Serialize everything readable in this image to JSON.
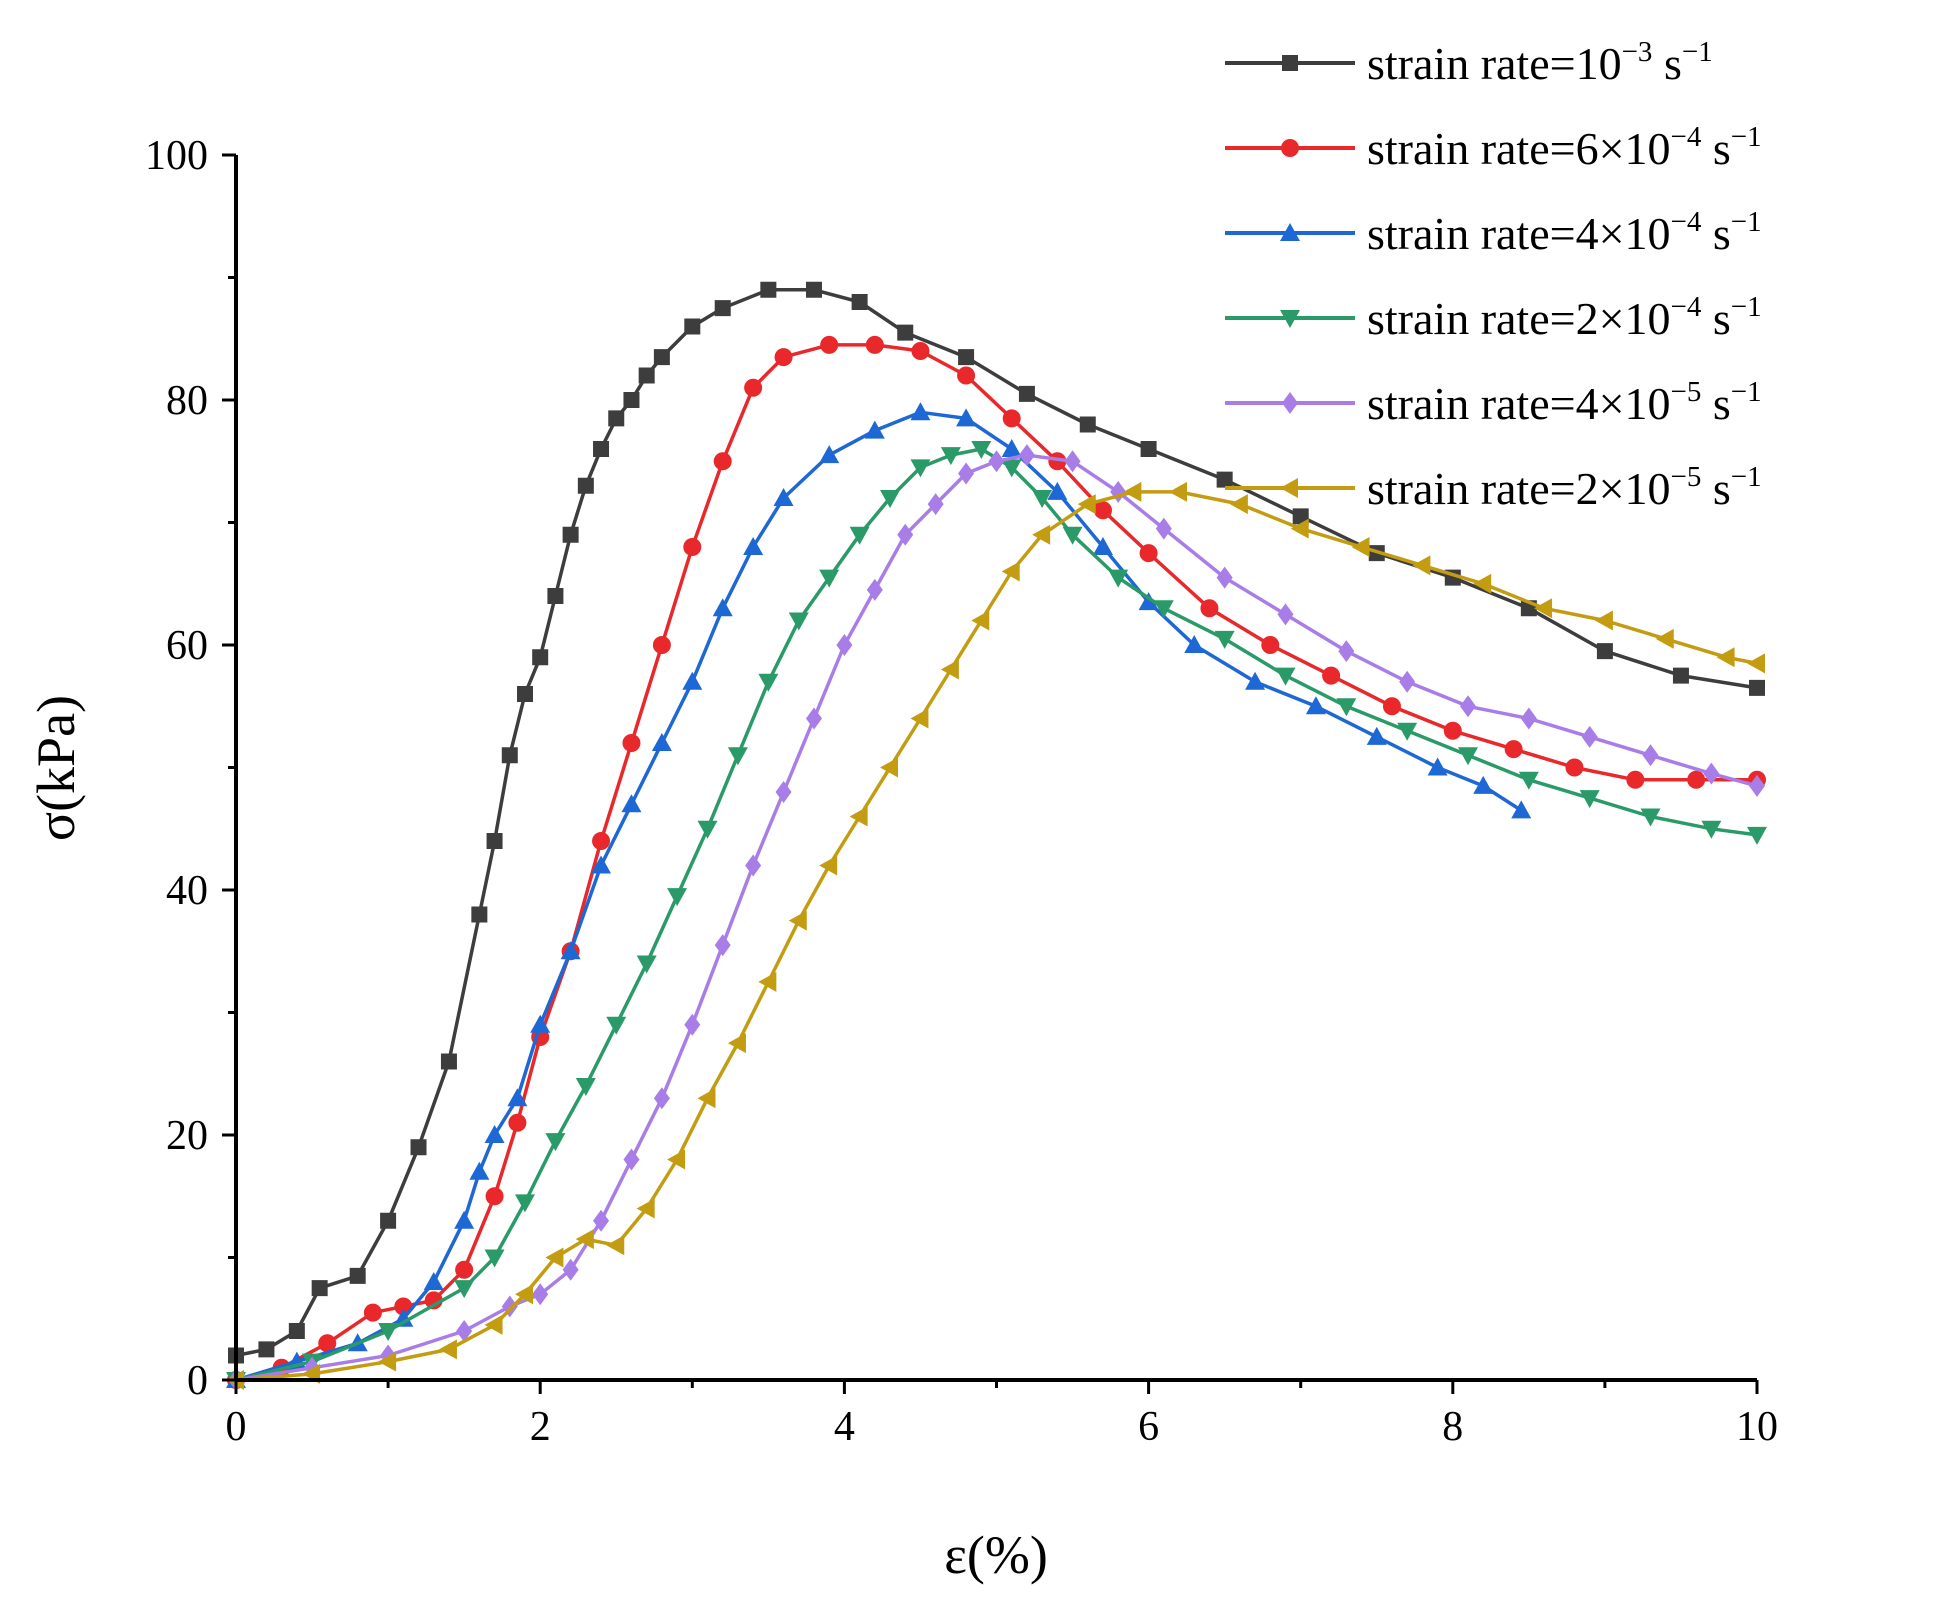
{
  "chart_data": {
    "type": "line",
    "title": "",
    "xlabel": "ε(%)",
    "ylabel": "σ(kPa)",
    "xlim": [
      0,
      10
    ],
    "ylim": [
      0,
      100
    ],
    "xticks": [
      0,
      2,
      4,
      6,
      8,
      10
    ],
    "yticks": [
      0,
      20,
      40,
      60,
      80,
      100
    ],
    "grid": false,
    "legend_position": "top-right",
    "series": [
      {
        "name": "strain rate=10⁻³ s⁻¹",
        "legend": {
          "base": "strain rate=10",
          "exp1": "−3",
          "mid": " s",
          "exp2": "−1"
        },
        "color": "#3d3d3d",
        "marker": "square",
        "x": [
          0,
          0.2,
          0.4,
          0.55,
          0.8,
          1.0,
          1.2,
          1.4,
          1.6,
          1.7,
          1.8,
          1.9,
          2.0,
          2.1,
          2.2,
          2.3,
          2.4,
          2.5,
          2.6,
          2.7,
          2.8,
          3.0,
          3.2,
          3.5,
          3.8,
          4.1,
          4.4,
          4.8,
          5.2,
          5.6,
          6.0,
          6.5,
          7.0,
          7.5,
          8.0,
          8.5,
          9.0,
          9.5,
          10.0
        ],
        "y": [
          2,
          2.5,
          4,
          7.5,
          8.5,
          13,
          19,
          26,
          38,
          44,
          51,
          56,
          59,
          64,
          69,
          73,
          76,
          78.5,
          80,
          82,
          83.5,
          86,
          87.5,
          89,
          89,
          88,
          85.5,
          83.5,
          80.5,
          78,
          76,
          73.5,
          70.5,
          67.5,
          65.5,
          63,
          59.5,
          57.5,
          56.5
        ]
      },
      {
        "name": "strain rate=6×10⁻⁴ s⁻¹",
        "legend": {
          "base": "strain rate=6×10",
          "exp1": "−4",
          "mid": " s",
          "exp2": "−1"
        },
        "color": "#e8282b",
        "marker": "circle",
        "x": [
          0,
          0.3,
          0.6,
          0.9,
          1.1,
          1.3,
          1.5,
          1.7,
          1.85,
          2.0,
          2.2,
          2.4,
          2.6,
          2.8,
          3.0,
          3.2,
          3.4,
          3.6,
          3.9,
          4.2,
          4.5,
          4.8,
          5.1,
          5.4,
          5.7,
          6.0,
          6.4,
          6.8,
          7.2,
          7.6,
          8.0,
          8.4,
          8.8,
          9.2,
          9.6,
          10.0
        ],
        "y": [
          0,
          1,
          3,
          5.5,
          6,
          6.5,
          9,
          15,
          21,
          28,
          35,
          44,
          52,
          60,
          68,
          75,
          81,
          83.5,
          84.5,
          84.5,
          84,
          82,
          78.5,
          75,
          71,
          67.5,
          63,
          60,
          57.5,
          55,
          53,
          51.5,
          50,
          49,
          49,
          49
        ]
      },
      {
        "name": "strain rate=4×10⁻⁴ s⁻¹",
        "legend": {
          "base": "strain rate=4×10",
          "exp1": "−4",
          "mid": " s",
          "exp2": "−1"
        },
        "color": "#1d68d4",
        "marker": "triangle-up",
        "x": [
          0,
          0.4,
          0.8,
          1.1,
          1.3,
          1.5,
          1.6,
          1.7,
          1.85,
          2.0,
          2.2,
          2.4,
          2.6,
          2.8,
          3.0,
          3.2,
          3.4,
          3.6,
          3.9,
          4.2,
          4.5,
          4.8,
          5.1,
          5.4,
          5.7,
          6.0,
          6.3,
          6.7,
          7.1,
          7.5,
          7.9,
          8.2,
          8.45
        ],
        "y": [
          0,
          1.5,
          3,
          5,
          8,
          13,
          17,
          20,
          23,
          29,
          35,
          42,
          47,
          52,
          57,
          63,
          68,
          72,
          75.5,
          77.5,
          79,
          78.5,
          76,
          72.5,
          68,
          63.5,
          60,
          57,
          55,
          52.5,
          50,
          48.5,
          46.5
        ]
      },
      {
        "name": "strain rate=2×10⁻⁴ s⁻¹",
        "legend": {
          "base": "strain rate=2×10",
          "exp1": "−4",
          "mid": " s",
          "exp2": "−1"
        },
        "color": "#2a9b68",
        "marker": "triangle-down",
        "x": [
          0,
          0.5,
          1.0,
          1.5,
          1.7,
          1.9,
          2.1,
          2.3,
          2.5,
          2.7,
          2.9,
          3.1,
          3.3,
          3.5,
          3.7,
          3.9,
          4.1,
          4.3,
          4.5,
          4.7,
          4.9,
          5.1,
          5.3,
          5.5,
          5.8,
          6.1,
          6.5,
          6.9,
          7.3,
          7.7,
          8.1,
          8.5,
          8.9,
          9.3,
          9.7,
          10.0
        ],
        "y": [
          0,
          1.5,
          4,
          7.5,
          10,
          14.5,
          19.5,
          24,
          29,
          34,
          39.5,
          45,
          51,
          57,
          62,
          65.5,
          69,
          72,
          74.5,
          75.5,
          76,
          74.5,
          72,
          69,
          65.5,
          63,
          60.5,
          57.5,
          55,
          53,
          51,
          49,
          47.5,
          46,
          45,
          44.5
        ]
      },
      {
        "name": "strain rate=4×10⁻⁵ s⁻¹",
        "legend": {
          "base": "strain rate=4×10",
          "exp1": "−5",
          "mid": " s",
          "exp2": "−1"
        },
        "color": "#a97de8",
        "marker": "diamond",
        "x": [
          0,
          0.5,
          1.0,
          1.5,
          1.8,
          2.0,
          2.2,
          2.4,
          2.6,
          2.8,
          3.0,
          3.2,
          3.4,
          3.6,
          3.8,
          4.0,
          4.2,
          4.4,
          4.6,
          4.8,
          5.0,
          5.2,
          5.5,
          5.8,
          6.1,
          6.5,
          6.9,
          7.3,
          7.7,
          8.1,
          8.5,
          8.9,
          9.3,
          9.7,
          10.0
        ],
        "y": [
          0,
          1,
          2,
          4,
          6,
          7,
          9,
          13,
          18,
          23,
          29,
          35.5,
          42,
          48,
          54,
          60,
          64.5,
          69,
          71.5,
          74,
          75,
          75.5,
          75,
          72.5,
          69.5,
          65.5,
          62.5,
          59.5,
          57,
          55,
          54,
          52.5,
          51,
          49.5,
          48.5
        ]
      },
      {
        "name": "strain rate=2×10⁻⁵ s⁻¹",
        "legend": {
          "base": "strain rate=2×10",
          "exp1": "−5",
          "mid": " s",
          "exp2": "−1"
        },
        "color": "#c39c12",
        "marker": "triangle-left",
        "x": [
          0,
          0.5,
          1.0,
          1.4,
          1.7,
          1.9,
          2.1,
          2.3,
          2.5,
          2.7,
          2.9,
          3.1,
          3.3,
          3.5,
          3.7,
          3.9,
          4.1,
          4.3,
          4.5,
          4.7,
          4.9,
          5.1,
          5.3,
          5.6,
          5.9,
          6.2,
          6.6,
          7.0,
          7.4,
          7.8,
          8.2,
          8.6,
          9.0,
          9.4,
          9.8,
          10.0
        ],
        "y": [
          0,
          0.5,
          1.5,
          2.5,
          4.5,
          7,
          10,
          11.5,
          11,
          14,
          18,
          23,
          27.5,
          32.5,
          37.5,
          42,
          46,
          50,
          54,
          58,
          62,
          66,
          69,
          71.5,
          72.5,
          72.5,
          71.5,
          69.5,
          68,
          66.5,
          65,
          63,
          62,
          60.5,
          59,
          58.5
        ]
      }
    ]
  }
}
